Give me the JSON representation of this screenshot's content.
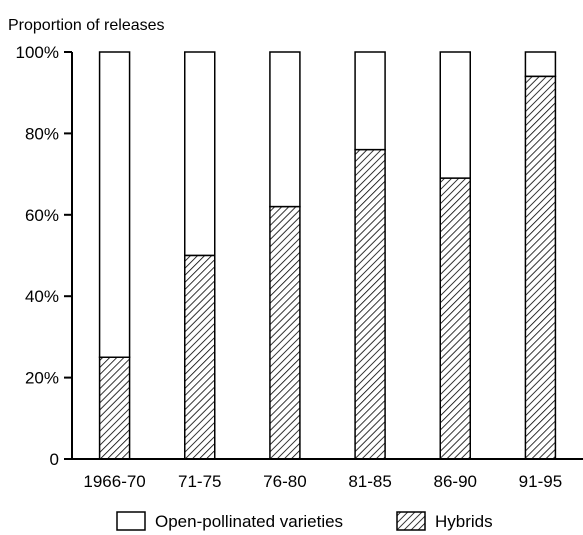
{
  "chart_data": {
    "type": "bar",
    "stacked": true,
    "normalized": true,
    "title": "",
    "ylabel": "Proportion of releases",
    "xlabel": "",
    "categories": [
      "1966-70",
      "71-75",
      "76-80",
      "81-85",
      "86-90",
      "91-95"
    ],
    "ylim": [
      0,
      100
    ],
    "yticks": [
      0,
      20,
      40,
      60,
      80,
      100
    ],
    "ytick_labels": [
      "0",
      "20%",
      "40%",
      "60%",
      "80%",
      "100%"
    ],
    "series": [
      {
        "name": "Hybrids",
        "values": [
          25,
          50,
          62,
          76,
          69,
          94
        ],
        "fill": "diagonal-hatch"
      },
      {
        "name": "Open-pollinated varieties",
        "values": [
          75,
          50,
          38,
          24,
          31,
          6
        ],
        "fill": "white"
      }
    ],
    "legend": {
      "position": "bottom",
      "entries": [
        "Open-pollinated varieties",
        "Hybrids"
      ]
    },
    "grid": false,
    "colors": {
      "stroke": "#000000",
      "background": "#ffffff",
      "hatch": "#000000"
    }
  }
}
